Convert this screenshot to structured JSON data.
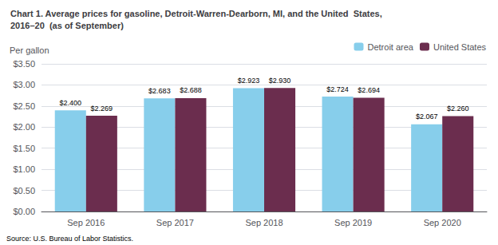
{
  "chart_data": {
    "type": "bar",
    "title": "Chart 1. Average prices for gasoline, Detroit-Warren-Dearborn, MI, and the United  States,\n2016–20  (as of September)",
    "ylabel": "Per gallon",
    "annotations": [
      "Source: U.S. Bureau of Labor Statistics."
    ],
    "categories": [
      "Sep 2016",
      "Sep 2017",
      "Sep 2018",
      "Sep 2019",
      "Sep 2020"
    ],
    "series": [
      {
        "name": "Detroit area",
        "color": "#87CEEB",
        "values": [
          2.4,
          2.683,
          2.923,
          2.724,
          2.067
        ],
        "value_labels": [
          "$2.400",
          "$2.683",
          "$2.923",
          "$2.724",
          "$2.067"
        ]
      },
      {
        "name": "United States",
        "color": "#6B2D4E",
        "values": [
          2.269,
          2.688,
          2.93,
          2.694,
          2.26
        ],
        "value_labels": [
          "$2.269",
          "$2.688",
          "$2.930",
          "$2.694",
          "$2.260"
        ]
      }
    ],
    "ylim": [
      0.0,
      3.5
    ],
    "yticks": [
      {
        "value": 0.0,
        "label": "$0.00"
      },
      {
        "value": 0.5,
        "label": "$0.50"
      },
      {
        "value": 1.0,
        "label": "$1.00"
      },
      {
        "value": 1.5,
        "label": "$1.50"
      },
      {
        "value": 2.0,
        "label": "$2.00"
      },
      {
        "value": 2.5,
        "label": "$2.50"
      },
      {
        "value": 3.0,
        "label": "$3.00"
      },
      {
        "value": 3.5,
        "label": "$3.50"
      }
    ],
    "grid": true,
    "legend": "upper right",
    "data_labels": true
  }
}
